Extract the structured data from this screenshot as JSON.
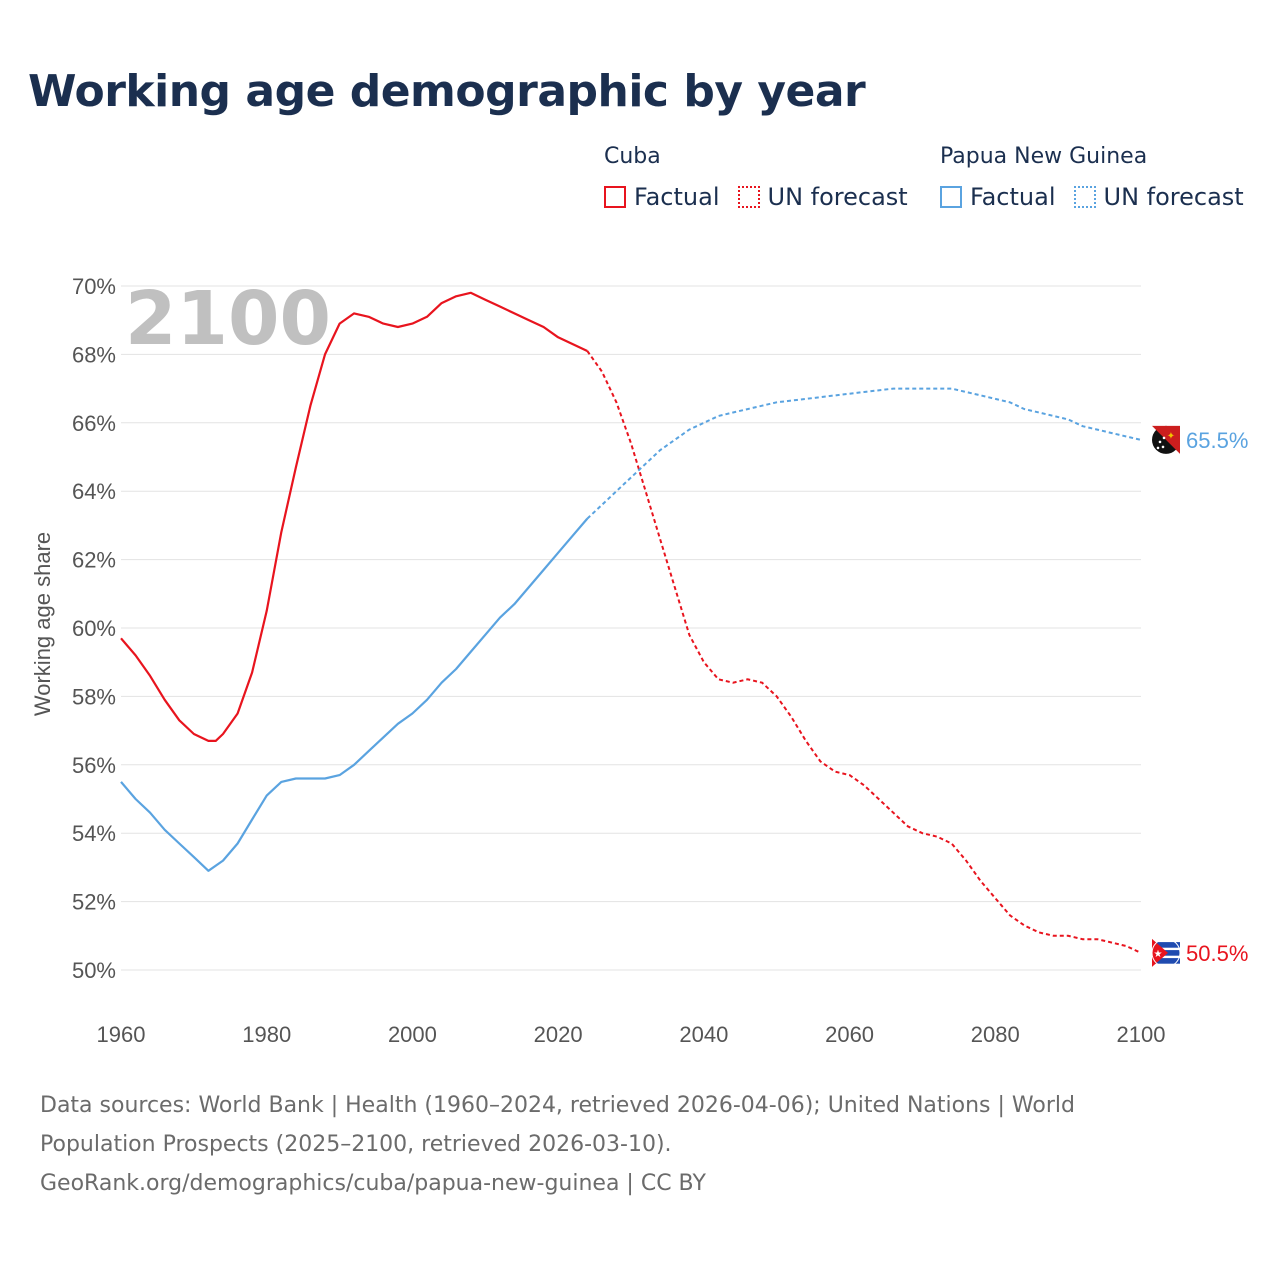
{
  "title": "Working age demographic by year",
  "legend": [
    {
      "name": "Cuba",
      "color": "#e8141e",
      "items": [
        "Factual",
        "UN forecast"
      ]
    },
    {
      "name": "Papua New Guinea",
      "color": "#5aa3e0",
      "items": [
        "Factual",
        "UN forecast"
      ]
    }
  ],
  "sources": {
    "line1": "Data sources: World Bank | Health (1960–2024, retrieved 2026-04-06); United Nations | World",
    "line2": "Population Prospects (2025–2100, retrieved 2026-03-10).",
    "line3": "GeoRank.org/demographics/cuba/papua-new-guinea | CC BY"
  },
  "chart_data": {
    "type": "line",
    "title": "Working age demographic by year",
    "xlabel": "",
    "ylabel": "Working age share",
    "year_watermark": "2100",
    "xlim": [
      1960,
      2100
    ],
    "ylim": [
      50,
      70
    ],
    "x_ticks": [
      1960,
      1980,
      2000,
      2020,
      2040,
      2060,
      2080,
      2100
    ],
    "y_ticks": [
      50,
      52,
      54,
      56,
      58,
      60,
      62,
      64,
      66,
      68,
      70
    ],
    "y_tick_labels": [
      "50%",
      "52%",
      "54%",
      "56%",
      "58%",
      "60%",
      "62%",
      "64%",
      "66%",
      "68%",
      "70%"
    ],
    "x_tick_labels": [
      "1960",
      "1980",
      "2000",
      "2020",
      "2040",
      "2060",
      "2080",
      "2100"
    ],
    "factual_end_year": 2024,
    "series": [
      {
        "name": "Cuba",
        "color": "#e8141e",
        "end_label": "50.5%",
        "flag": "cuba-flag-icon",
        "points": [
          [
            1960,
            59.7
          ],
          [
            1962,
            59.2
          ],
          [
            1964,
            58.6
          ],
          [
            1966,
            57.9
          ],
          [
            1968,
            57.3
          ],
          [
            1970,
            56.9
          ],
          [
            1972,
            56.7
          ],
          [
            1973,
            56.7
          ],
          [
            1974,
            56.9
          ],
          [
            1976,
            57.5
          ],
          [
            1978,
            58.7
          ],
          [
            1980,
            60.5
          ],
          [
            1982,
            62.8
          ],
          [
            1984,
            64.7
          ],
          [
            1986,
            66.5
          ],
          [
            1988,
            68.0
          ],
          [
            1990,
            68.9
          ],
          [
            1992,
            69.2
          ],
          [
            1994,
            69.1
          ],
          [
            1996,
            68.9
          ],
          [
            1998,
            68.8
          ],
          [
            2000,
            68.9
          ],
          [
            2002,
            69.1
          ],
          [
            2004,
            69.5
          ],
          [
            2006,
            69.7
          ],
          [
            2008,
            69.8
          ],
          [
            2010,
            69.6
          ],
          [
            2012,
            69.4
          ],
          [
            2014,
            69.2
          ],
          [
            2016,
            69.0
          ],
          [
            2018,
            68.8
          ],
          [
            2020,
            68.5
          ],
          [
            2022,
            68.3
          ],
          [
            2024,
            68.1
          ],
          [
            2026,
            67.5
          ],
          [
            2028,
            66.6
          ],
          [
            2030,
            65.4
          ],
          [
            2032,
            64.0
          ],
          [
            2034,
            62.6
          ],
          [
            2036,
            61.2
          ],
          [
            2038,
            59.8
          ],
          [
            2040,
            59.0
          ],
          [
            2042,
            58.5
          ],
          [
            2044,
            58.4
          ],
          [
            2046,
            58.5
          ],
          [
            2048,
            58.4
          ],
          [
            2050,
            58.0
          ],
          [
            2052,
            57.4
          ],
          [
            2054,
            56.7
          ],
          [
            2056,
            56.1
          ],
          [
            2058,
            55.8
          ],
          [
            2060,
            55.7
          ],
          [
            2062,
            55.4
          ],
          [
            2064,
            55.0
          ],
          [
            2066,
            54.6
          ],
          [
            2068,
            54.2
          ],
          [
            2070,
            54.0
          ],
          [
            2072,
            53.9
          ],
          [
            2074,
            53.7
          ],
          [
            2076,
            53.2
          ],
          [
            2078,
            52.6
          ],
          [
            2080,
            52.1
          ],
          [
            2082,
            51.6
          ],
          [
            2084,
            51.3
          ],
          [
            2086,
            51.1
          ],
          [
            2088,
            51.0
          ],
          [
            2090,
            51.0
          ],
          [
            2092,
            50.9
          ],
          [
            2094,
            50.9
          ],
          [
            2096,
            50.8
          ],
          [
            2098,
            50.7
          ],
          [
            2100,
            50.5
          ]
        ]
      },
      {
        "name": "Papua New Guinea",
        "color": "#5aa3e0",
        "end_label": "65.5%",
        "flag": "papua-new-guinea-flag-icon",
        "points": [
          [
            1960,
            55.5
          ],
          [
            1962,
            55.0
          ],
          [
            1964,
            54.6
          ],
          [
            1966,
            54.1
          ],
          [
            1968,
            53.7
          ],
          [
            1970,
            53.3
          ],
          [
            1972,
            52.9
          ],
          [
            1974,
            53.2
          ],
          [
            1976,
            53.7
          ],
          [
            1978,
            54.4
          ],
          [
            1980,
            55.1
          ],
          [
            1982,
            55.5
          ],
          [
            1984,
            55.6
          ],
          [
            1986,
            55.6
          ],
          [
            1988,
            55.6
          ],
          [
            1990,
            55.7
          ],
          [
            1992,
            56.0
          ],
          [
            1994,
            56.4
          ],
          [
            1996,
            56.8
          ],
          [
            1998,
            57.2
          ],
          [
            2000,
            57.5
          ],
          [
            2002,
            57.9
          ],
          [
            2004,
            58.4
          ],
          [
            2006,
            58.8
          ],
          [
            2008,
            59.3
          ],
          [
            2010,
            59.8
          ],
          [
            2012,
            60.3
          ],
          [
            2014,
            60.7
          ],
          [
            2016,
            61.2
          ],
          [
            2018,
            61.7
          ],
          [
            2020,
            62.2
          ],
          [
            2022,
            62.7
          ],
          [
            2024,
            63.2
          ],
          [
            2026,
            63.6
          ],
          [
            2028,
            64.0
          ],
          [
            2030,
            64.4
          ],
          [
            2032,
            64.8
          ],
          [
            2034,
            65.2
          ],
          [
            2036,
            65.5
          ],
          [
            2038,
            65.8
          ],
          [
            2040,
            66.0
          ],
          [
            2042,
            66.2
          ],
          [
            2044,
            66.3
          ],
          [
            2046,
            66.4
          ],
          [
            2048,
            66.5
          ],
          [
            2050,
            66.6
          ],
          [
            2054,
            66.7
          ],
          [
            2058,
            66.8
          ],
          [
            2062,
            66.9
          ],
          [
            2066,
            67.0
          ],
          [
            2070,
            67.0
          ],
          [
            2074,
            67.0
          ],
          [
            2076,
            66.9
          ],
          [
            2078,
            66.8
          ],
          [
            2080,
            66.7
          ],
          [
            2082,
            66.6
          ],
          [
            2084,
            66.4
          ],
          [
            2086,
            66.3
          ],
          [
            2088,
            66.2
          ],
          [
            2090,
            66.1
          ],
          [
            2092,
            65.9
          ],
          [
            2094,
            65.8
          ],
          [
            2096,
            65.7
          ],
          [
            2098,
            65.6
          ],
          [
            2100,
            65.5
          ]
        ]
      }
    ]
  }
}
